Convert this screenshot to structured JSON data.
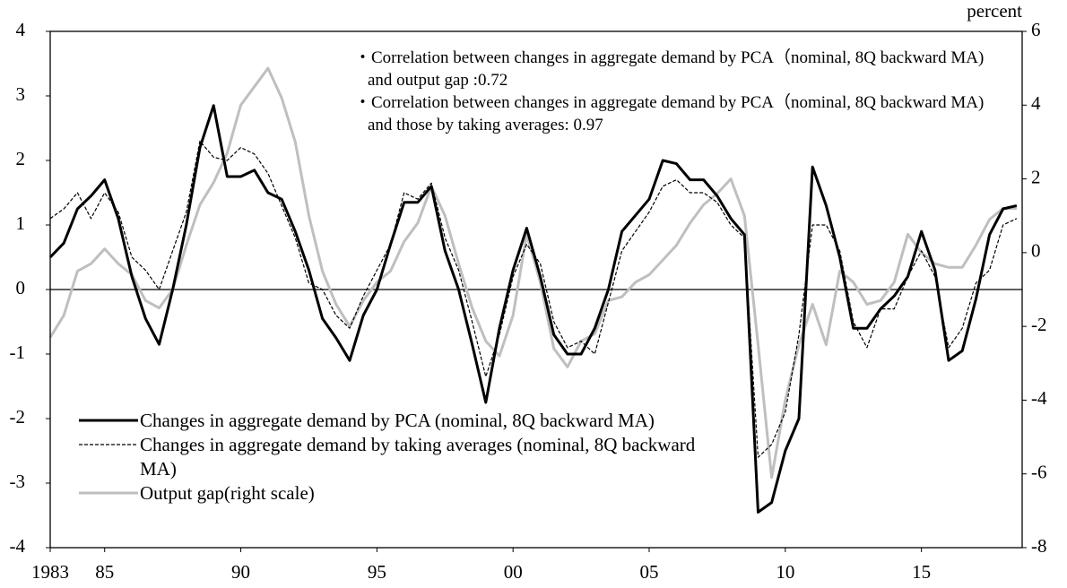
{
  "chart_data": {
    "type": "line",
    "y_axis_label": "percent",
    "annotations": [
      "・Correlation between changes in aggregate demand by PCA（nominal, 8Q backward MA) and output gap :0.72",
      "・Correlation between changes in aggregate demand by PCA（nominal, 8Q backward MA)  and those by taking averages: 0.97"
    ],
    "x": [
      1983,
      1983.5,
      1984,
      1984.5,
      1985,
      1985.5,
      1986,
      1986.5,
      1987,
      1987.5,
      1988,
      1988.5,
      1989,
      1989.5,
      1990,
      1990.5,
      1991,
      1991.5,
      1992,
      1992.5,
      1993,
      1993.5,
      1994,
      1994.5,
      1995,
      1995.5,
      1996,
      1996.5,
      1997,
      1997.5,
      1998,
      1998.5,
      1999,
      1999.5,
      2000,
      2000.5,
      2001,
      2001.5,
      2002,
      2002.5,
      2003,
      2003.5,
      2004,
      2004.5,
      2005,
      2005.5,
      2006,
      2006.5,
      2007,
      2007.5,
      2008,
      2008.5,
      2009,
      2009.5,
      2010,
      2010.5,
      2011,
      2011.5,
      2012,
      2012.5,
      2013,
      2013.5,
      2014,
      2014.5,
      2015,
      2015.5,
      2016,
      2016.5,
      2017,
      2017.5,
      2018,
      2018.5
    ],
    "xlim": [
      1983,
      2018.7
    ],
    "xticks": [
      {
        "value": 1983,
        "label": "1983"
      },
      {
        "value": 1985,
        "label": "85"
      },
      {
        "value": 1990,
        "label": "90"
      },
      {
        "value": 1995,
        "label": "95"
      },
      {
        "value": 2000,
        "label": "00"
      },
      {
        "value": 2005,
        "label": "05"
      },
      {
        "value": 2010,
        "label": "10"
      },
      {
        "value": 2015,
        "label": "15"
      }
    ],
    "ylim": [
      -4,
      4
    ],
    "yticks": [
      4,
      3,
      2,
      1,
      0,
      -1,
      -2,
      -3,
      -4
    ],
    "y2lim": [
      -8,
      6
    ],
    "y2ticks": [
      6,
      4,
      2,
      0,
      -2,
      -4,
      -6,
      -8
    ],
    "series": [
      {
        "name": "Changes in aggregate demand by PCA (nominal, 8Q backward MA)",
        "color": "#000000",
        "style": "solid",
        "values": [
          0.5,
          0.72,
          1.25,
          1.45,
          1.7,
          1.1,
          0.2,
          -0.45,
          -0.85,
          0.0,
          1.0,
          2.2,
          2.85,
          1.75,
          1.75,
          1.85,
          1.5,
          1.4,
          0.9,
          0.3,
          -0.45,
          -0.75,
          -1.1,
          -0.4,
          0.0,
          0.7,
          1.35,
          1.35,
          1.6,
          0.6,
          0.0,
          -0.85,
          -1.75,
          -0.6,
          0.3,
          0.95,
          0.2,
          -0.7,
          -1.0,
          -1.0,
          -0.6,
          0.0,
          0.9,
          1.15,
          1.4,
          2.0,
          1.95,
          1.7,
          1.7,
          1.45,
          1.1,
          0.85,
          -3.45,
          -3.3,
          -2.5,
          -2.0,
          1.9,
          1.3,
          0.5,
          -0.6,
          -0.6,
          -0.3,
          -0.1,
          0.2,
          0.9,
          0.3,
          -1.1,
          -0.95,
          -0.15,
          0.85,
          1.25,
          1.3
        ]
      },
      {
        "name": "Changes in aggregate demand by taking averages (nominal, 8Q backward MA)",
        "color": "#000000",
        "style": "dashed",
        "values": [
          1.1,
          1.25,
          1.5,
          1.1,
          1.5,
          1.2,
          0.5,
          0.3,
          0.0,
          0.6,
          1.2,
          2.3,
          2.05,
          2.0,
          2.2,
          2.1,
          1.8,
          1.3,
          0.8,
          0.1,
          0.0,
          -0.4,
          -0.6,
          -0.1,
          0.3,
          0.7,
          1.5,
          1.4,
          1.65,
          0.8,
          0.3,
          -0.5,
          -1.35,
          -0.7,
          0.2,
          0.7,
          0.4,
          -0.5,
          -0.9,
          -0.8,
          -1.0,
          -0.2,
          0.6,
          0.9,
          1.2,
          1.6,
          1.7,
          1.5,
          1.5,
          1.35,
          1.0,
          0.8,
          -2.6,
          -2.4,
          -1.9,
          -0.7,
          1.0,
          1.0,
          0.6,
          -0.5,
          -0.9,
          -0.3,
          -0.3,
          0.2,
          0.6,
          0.2,
          -0.9,
          -0.6,
          0.1,
          0.3,
          1.0,
          1.1
        ]
      },
      {
        "name": "Output gap(right scale)",
        "color": "#bfbfbf",
        "style": "solid",
        "axis": "y2",
        "values": [
          -2.3,
          -1.7,
          -0.5,
          -0.3,
          0.1,
          -0.3,
          -0.6,
          -1.3,
          -1.5,
          -1.0,
          0.2,
          1.3,
          1.9,
          2.7,
          4.0,
          4.5,
          5.0,
          4.2,
          3.0,
          1.0,
          -0.5,
          -1.4,
          -2.0,
          -1.3,
          -0.8,
          -0.5,
          0.3,
          0.8,
          1.8,
          1.0,
          -0.3,
          -1.5,
          -2.4,
          -2.8,
          -1.7,
          0.5,
          -0.8,
          -2.6,
          -3.1,
          -2.4,
          -2.2,
          -1.3,
          -1.2,
          -0.8,
          -0.6,
          -0.2,
          0.2,
          0.8,
          1.3,
          1.6,
          2.0,
          1.0,
          -2.5,
          -6.1,
          -4.0,
          -2.5,
          -1.4,
          -2.5,
          -0.5,
          -0.8,
          -1.4,
          -1.3,
          -0.8,
          0.5,
          0.0,
          -0.3,
          -0.4,
          -0.4,
          0.2,
          0.9,
          1.2,
          1.2
        ]
      }
    ]
  }
}
